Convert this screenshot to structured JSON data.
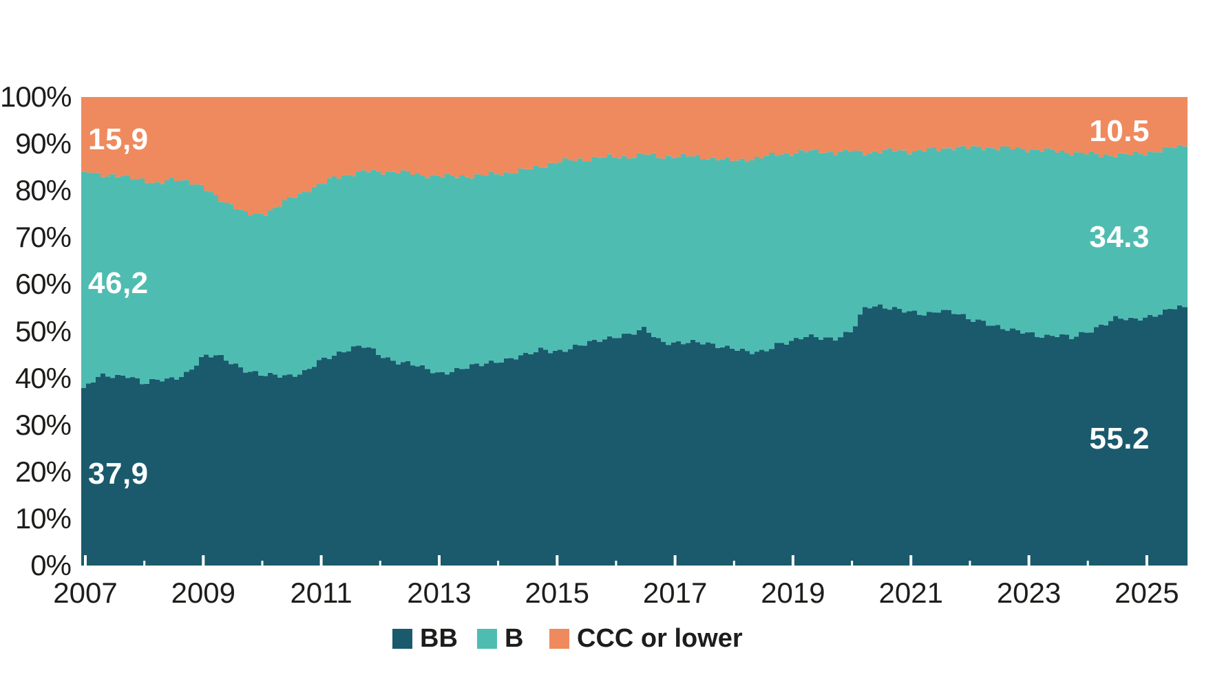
{
  "chart_data": {
    "type": "area",
    "stacked": true,
    "stack_total": 100,
    "title": "",
    "xlabel": "",
    "ylabel": "",
    "grid": false,
    "legend_position": "bottom",
    "x_range": [
      2006.93,
      2025.69
    ],
    "ylim": [
      0,
      100
    ],
    "x": [
      2007.0,
      2007.25,
      2007.5,
      2007.75,
      2008.0,
      2008.25,
      2008.5,
      2008.75,
      2009.0,
      2009.25,
      2009.5,
      2009.75,
      2010.0,
      2010.25,
      2010.5,
      2010.75,
      2011.0,
      2011.25,
      2011.5,
      2011.75,
      2012.0,
      2012.25,
      2012.5,
      2012.75,
      2013.0,
      2013.25,
      2013.5,
      2013.75,
      2014.0,
      2014.25,
      2014.5,
      2014.75,
      2015.0,
      2015.25,
      2015.5,
      2015.75,
      2016.0,
      2016.25,
      2016.5,
      2016.75,
      2017.0,
      2017.25,
      2017.5,
      2017.75,
      2018.0,
      2018.25,
      2018.5,
      2018.75,
      2019.0,
      2019.25,
      2019.5,
      2019.75,
      2020.0,
      2020.25,
      2020.5,
      2020.75,
      2021.0,
      2021.25,
      2021.5,
      2021.75,
      2022.0,
      2022.25,
      2022.5,
      2022.75,
      2023.0,
      2023.25,
      2023.5,
      2023.75,
      2024.0,
      2024.25,
      2024.5,
      2024.75,
      2025.0,
      2025.25,
      2025.5,
      2025.69
    ],
    "series": [
      {
        "name": "BB",
        "color": "#1a5a6c",
        "values": [
          37.9,
          40.3,
          40.5,
          40.8,
          38.6,
          39.5,
          40.1,
          41.2,
          44.3,
          44.9,
          43.5,
          41.4,
          40.4,
          40.8,
          40.7,
          41.2,
          43.6,
          45.3,
          46.4,
          46.7,
          44.9,
          43.8,
          43.2,
          41.9,
          41.0,
          41.8,
          42.3,
          42.8,
          43.8,
          44.4,
          44.8,
          46.1,
          45.9,
          46.4,
          47.1,
          48.3,
          49.1,
          49.2,
          50.4,
          48.1,
          47.6,
          47.4,
          47.5,
          47.1,
          46.4,
          45.2,
          45.7,
          47.6,
          47.7,
          48.8,
          48.8,
          48.6,
          49.8,
          55.3,
          55.6,
          54.8,
          53.8,
          53.6,
          54.8,
          53.9,
          52.3,
          52.2,
          51.0,
          49.9,
          49.5,
          49.1,
          49.3,
          48.3,
          49.9,
          51.6,
          52.8,
          52.2,
          53.1,
          54.1,
          55.0,
          55.2
        ]
      },
      {
        "name": "B",
        "color": "#4fbcb2",
        "values": [
          46.2,
          43.1,
          42.8,
          41.9,
          43.8,
          41.9,
          42.3,
          41.0,
          36.3,
          33.6,
          33.4,
          33.5,
          34.6,
          35.7,
          37.7,
          38.8,
          37.7,
          37.6,
          37.1,
          37.4,
          39.1,
          40.3,
          40.5,
          41.4,
          42.2,
          41.2,
          40.8,
          40.5,
          39.7,
          39.6,
          39.7,
          39.1,
          40.3,
          40.0,
          39.6,
          38.9,
          38.0,
          38.1,
          37.4,
          39.0,
          39.8,
          39.9,
          39.6,
          39.7,
          40.0,
          41.5,
          41.4,
          40.2,
          40.3,
          39.6,
          39.6,
          39.5,
          38.6,
          32.8,
          32.8,
          33.8,
          34.6,
          35.0,
          34.1,
          35.4,
          36.8,
          37.0,
          38.1,
          39.1,
          39.3,
          39.5,
          39.1,
          39.8,
          38.0,
          36.0,
          34.8,
          35.5,
          35.0,
          34.5,
          34.3,
          34.3
        ]
      },
      {
        "name": "CCC or lower",
        "color": "#ef8a5f",
        "values": [
          15.9,
          16.6,
          16.7,
          17.3,
          17.6,
          18.6,
          17.6,
          17.8,
          19.4,
          21.5,
          23.1,
          25.1,
          25.0,
          23.5,
          21.6,
          20.0,
          18.7,
          17.1,
          16.5,
          15.9,
          16.0,
          15.9,
          16.3,
          16.7,
          16.8,
          17.0,
          16.9,
          16.7,
          16.5,
          16.0,
          15.5,
          14.8,
          13.8,
          13.6,
          13.3,
          12.8,
          12.9,
          12.7,
          12.2,
          12.9,
          12.6,
          12.7,
          12.9,
          13.2,
          13.6,
          13.3,
          12.9,
          12.2,
          12.0,
          11.6,
          11.6,
          11.9,
          11.6,
          11.9,
          11.6,
          11.4,
          11.6,
          11.4,
          11.1,
          10.7,
          10.9,
          10.8,
          10.9,
          11.0,
          11.2,
          11.4,
          11.6,
          11.9,
          12.1,
          12.4,
          12.4,
          12.3,
          11.9,
          11.4,
          10.7,
          10.5
        ]
      }
    ],
    "y_axis": {
      "ticks": [
        {
          "value": 0,
          "label": "0%"
        },
        {
          "value": 10,
          "label": "10%"
        },
        {
          "value": 20,
          "label": "20%"
        },
        {
          "value": 30,
          "label": "30%"
        },
        {
          "value": 40,
          "label": "40%"
        },
        {
          "value": 50,
          "label": "50%"
        },
        {
          "value": 60,
          "label": "60%"
        },
        {
          "value": 70,
          "label": "70%"
        },
        {
          "value": 80,
          "label": "80%"
        },
        {
          "value": 90,
          "label": "90%"
        },
        {
          "value": 100,
          "label": "100%"
        }
      ]
    },
    "x_axis": {
      "major_ticks": [
        2007,
        2009,
        2011,
        2013,
        2015,
        2017,
        2019,
        2021,
        2023,
        2025
      ],
      "minor_ticks": [
        2008,
        2010,
        2012,
        2014,
        2016,
        2018,
        2020,
        2022,
        2024
      ],
      "major_labels": [
        "2007",
        "2009",
        "2011",
        "2013",
        "2015",
        "2017",
        "2019",
        "2021",
        "2023",
        "2025"
      ]
    },
    "annotations": {
      "start": [
        {
          "series": "CCC or lower",
          "text": "15,9"
        },
        {
          "series": "B",
          "text": "46,2"
        },
        {
          "series": "BB",
          "text": "37,9"
        }
      ],
      "end": [
        {
          "series": "CCC or lower",
          "text": "10.5"
        },
        {
          "series": "B",
          "text": "34.3"
        },
        {
          "series": "BB",
          "text": "55.2"
        }
      ]
    },
    "legend": [
      {
        "label": "BB",
        "color": "#1a5a6c"
      },
      {
        "label": "B",
        "color": "#4fbcb2"
      },
      {
        "label": "CCC or lower",
        "color": "#ef8a5f"
      }
    ]
  },
  "colors": {
    "background": "#ffffff",
    "axis_text": "#1d1d1b",
    "data_label_text": "#ffffff",
    "tick_mark": "#ffffff"
  }
}
